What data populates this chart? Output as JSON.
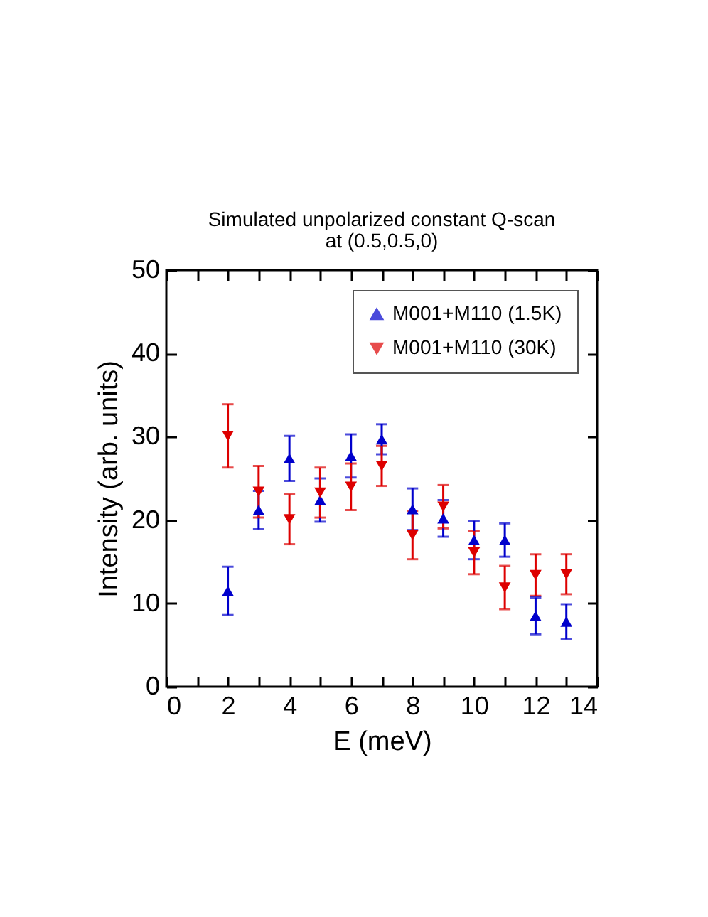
{
  "chart_data": {
    "type": "scatter",
    "title": "Simulated unpolarized constant Q-scan",
    "subtitle": "at (0.5,0.5,0)",
    "xlabel": "E (meV)",
    "ylabel": "Intensity (arb. units)",
    "x": [
      2,
      3,
      4,
      5,
      6,
      7,
      8,
      9,
      10,
      11,
      12,
      13
    ],
    "series": [
      {
        "name": "M001+M110 (1.5K)",
        "color": "#0000cc",
        "marker": "triangle",
        "values": [
          11.5,
          21.2,
          27.4,
          22.4,
          27.7,
          29.7,
          21.3,
          20.2,
          17.6,
          17.6,
          8.5,
          7.8
        ],
        "errors": [
          2.9,
          2.3,
          2.7,
          2.6,
          2.6,
          1.8,
          2.5,
          2.2,
          2.3,
          2.0,
          2.2,
          2.1
        ]
      },
      {
        "name": "M001+M110 (30K)",
        "color": "#dd0000",
        "marker": "triangle-down",
        "values": [
          30.1,
          23.4,
          20.1,
          23.3,
          24.0,
          26.5,
          18.2,
          21.6,
          16.1,
          11.9,
          13.4,
          13.5
        ],
        "errors": [
          3.8,
          3.1,
          3.0,
          3.0,
          2.8,
          2.4,
          2.9,
          2.6,
          2.6,
          2.6,
          2.5,
          2.4
        ]
      }
    ],
    "xlim": [
      0,
      14
    ],
    "xticks": [
      0,
      {
        "value": 1,
        "label": null
      },
      2,
      {
        "value": 3,
        "label": null
      },
      4,
      {
        "value": 5,
        "label": null
      },
      6,
      {
        "value": 7,
        "label": null
      },
      8,
      {
        "value": 9,
        "label": null
      },
      10,
      {
        "value": 11,
        "label": null
      },
      12,
      {
        "value": 13,
        "label": null
      },
      14
    ],
    "ylim": [
      0,
      50
    ],
    "yticks": [
      0,
      10,
      20,
      30,
      40,
      50
    ],
    "legend": "top right"
  }
}
